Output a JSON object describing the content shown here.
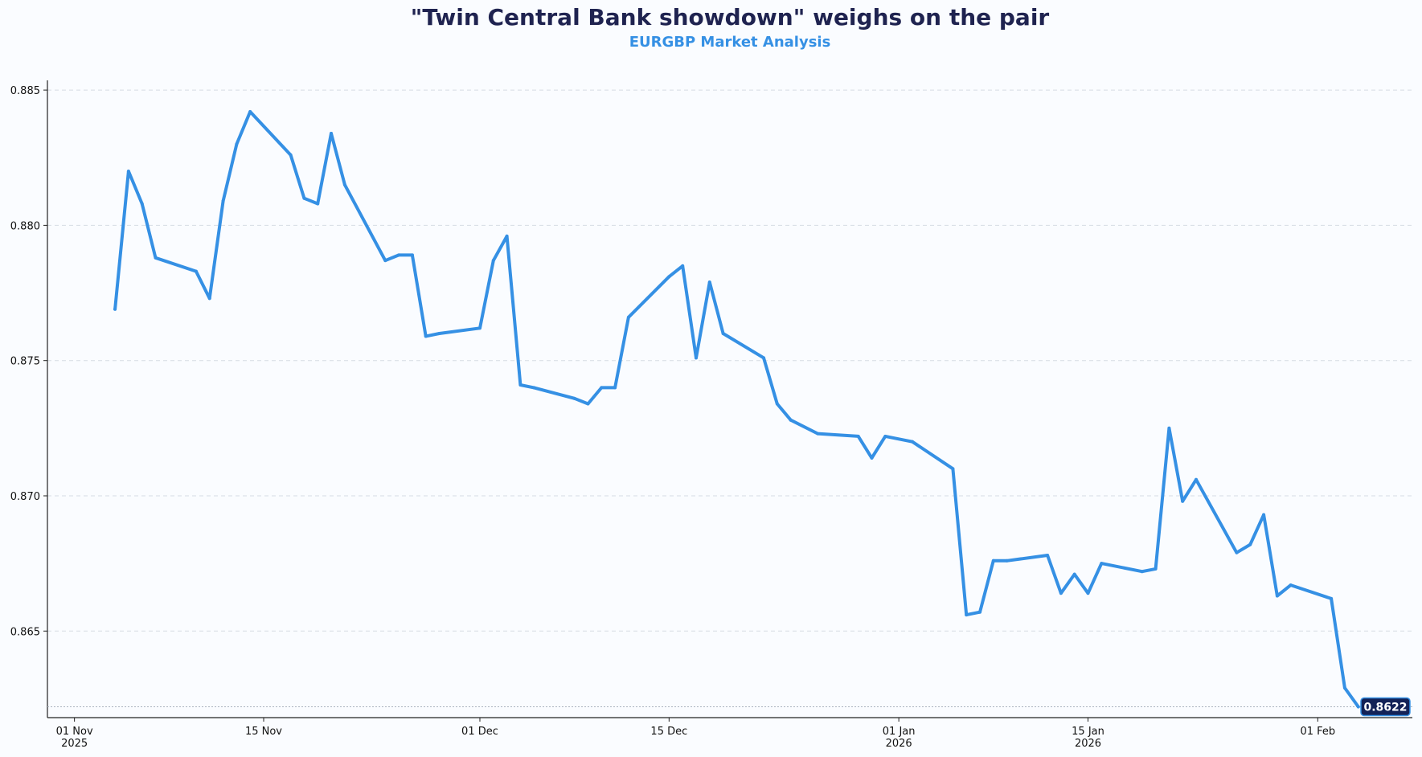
{
  "chart_data": {
    "type": "line",
    "title": "\"Twin Central Bank showdown\" weighs on the pair",
    "subtitle": "EURGBP Market Analysis",
    "xlabel": "",
    "ylabel": "",
    "x_range": [
      "2025-10-30",
      "2026-02-08"
    ],
    "ylim": [
      0.8618,
      0.8853
    ],
    "grid": "horizontal-dashed",
    "y_ticks": [
      {
        "value": 0.865,
        "label": "0.865"
      },
      {
        "value": 0.87,
        "label": "0.870"
      },
      {
        "value": 0.875,
        "label": "0.875"
      },
      {
        "value": 0.88,
        "label": "0.880"
      },
      {
        "value": 0.885,
        "label": "0.885"
      }
    ],
    "x_ticks": [
      {
        "date": "2025-11-01",
        "label": "01 Nov",
        "sublabel": "2025"
      },
      {
        "date": "2025-11-15",
        "label": "15 Nov",
        "sublabel": ""
      },
      {
        "date": "2025-12-01",
        "label": "01 Dec",
        "sublabel": ""
      },
      {
        "date": "2025-12-15",
        "label": "15 Dec",
        "sublabel": ""
      },
      {
        "date": "2026-01-01",
        "label": "01 Jan",
        "sublabel": "2026"
      },
      {
        "date": "2026-01-15",
        "label": "15 Jan",
        "sublabel": "2026"
      },
      {
        "date": "2026-02-01",
        "label": "01 Feb",
        "sublabel": ""
      }
    ],
    "series": [
      {
        "color": "#3590e4",
        "points": [
          [
            "2025-11-04",
            0.8769
          ],
          [
            "2025-11-05",
            0.882
          ],
          [
            "2025-11-06",
            0.8808
          ],
          [
            "2025-11-07",
            0.8788
          ],
          [
            "2025-11-10",
            0.8783
          ],
          [
            "2025-11-11",
            0.8773
          ],
          [
            "2025-11-12",
            0.8809
          ],
          [
            "2025-11-13",
            0.883
          ],
          [
            "2025-11-14",
            0.8842
          ],
          [
            "2025-11-17",
            0.8826
          ],
          [
            "2025-11-18",
            0.881
          ],
          [
            "2025-11-19",
            0.8808
          ],
          [
            "2025-11-20",
            0.8834
          ],
          [
            "2025-11-21",
            0.8815
          ],
          [
            "2025-11-24",
            0.8787
          ],
          [
            "2025-11-25",
            0.8789
          ],
          [
            "2025-11-26",
            0.8789
          ],
          [
            "2025-11-27",
            0.8759
          ],
          [
            "2025-11-28",
            0.876
          ],
          [
            "2025-12-01",
            0.8762
          ],
          [
            "2025-12-02",
            0.8787
          ],
          [
            "2025-12-03",
            0.8796
          ],
          [
            "2025-12-04",
            0.8741
          ],
          [
            "2025-12-05",
            0.874
          ],
          [
            "2025-12-08",
            0.8736
          ],
          [
            "2025-12-09",
            0.8734
          ],
          [
            "2025-12-10",
            0.874
          ],
          [
            "2025-12-11",
            0.874
          ],
          [
            "2025-12-12",
            0.8766
          ],
          [
            "2025-12-15",
            0.8781
          ],
          [
            "2025-12-16",
            0.8785
          ],
          [
            "2025-12-17",
            0.8751
          ],
          [
            "2025-12-18",
            0.8779
          ],
          [
            "2025-12-19",
            0.876
          ],
          [
            "2025-12-22",
            0.8751
          ],
          [
            "2025-12-23",
            0.8734
          ],
          [
            "2025-12-24",
            0.8728
          ],
          [
            "2025-12-26",
            0.8723
          ],
          [
            "2025-12-29",
            0.8722
          ],
          [
            "2025-12-30",
            0.8714
          ],
          [
            "2025-12-31",
            0.8722
          ],
          [
            "2026-01-02",
            0.872
          ],
          [
            "2026-01-05",
            0.871
          ],
          [
            "2026-01-06",
            0.8656
          ],
          [
            "2026-01-07",
            0.8657
          ],
          [
            "2026-01-08",
            0.8676
          ],
          [
            "2026-01-09",
            0.8676
          ],
          [
            "2026-01-12",
            0.8678
          ],
          [
            "2026-01-13",
            0.8664
          ],
          [
            "2026-01-14",
            0.8671
          ],
          [
            "2026-01-15",
            0.8664
          ],
          [
            "2026-01-16",
            0.8675
          ],
          [
            "2026-01-19",
            0.8672
          ],
          [
            "2026-01-20",
            0.8673
          ],
          [
            "2026-01-21",
            0.8725
          ],
          [
            "2026-01-22",
            0.8698
          ],
          [
            "2026-01-23",
            0.8706
          ],
          [
            "2026-01-26",
            0.8679
          ],
          [
            "2026-01-27",
            0.8682
          ],
          [
            "2026-01-28",
            0.8693
          ],
          [
            "2026-01-29",
            0.8663
          ],
          [
            "2026-01-30",
            0.8667
          ],
          [
            "2026-02-02",
            0.8662
          ],
          [
            "2026-02-03",
            0.8629
          ],
          [
            "2026-02-04",
            0.8622
          ]
        ]
      }
    ],
    "last_value": 0.8622,
    "last_value_label": "0.8622",
    "colors": {
      "line": "#3590e4",
      "title": "#1f2350",
      "subtitle": "#3590e4",
      "badge_bg": "#132257",
      "badge_text": "#ffffff",
      "grid": "#d6dce4",
      "background": "#fafcff"
    }
  }
}
